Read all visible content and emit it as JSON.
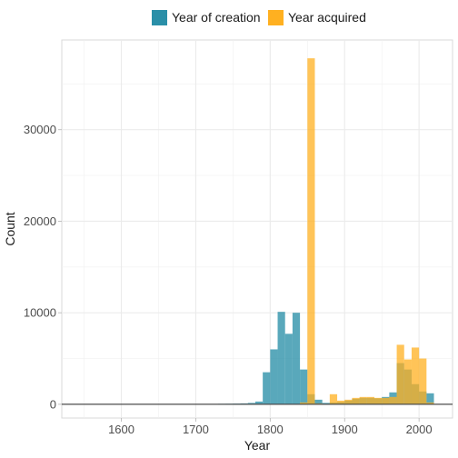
{
  "chart_data": {
    "type": "bar",
    "title": "",
    "xlabel": "Year",
    "ylabel": "Count",
    "xlim": [
      1520,
      2045
    ],
    "ylim": [
      -1500,
      39800
    ],
    "x_ticks": [
      1600,
      1700,
      1800,
      1900,
      2000
    ],
    "y_ticks": [
      0,
      10000,
      20000,
      30000
    ],
    "bin_width": 10,
    "grid": true,
    "legend_position": "top",
    "series": [
      {
        "name": "Year of creation",
        "color": "#2a8fa8",
        "bins": [
          {
            "x": 1735,
            "y": 50
          },
          {
            "x": 1745,
            "y": 60
          },
          {
            "x": 1755,
            "y": 80
          },
          {
            "x": 1765,
            "y": 100
          },
          {
            "x": 1775,
            "y": 150
          },
          {
            "x": 1785,
            "y": 300
          },
          {
            "x": 1795,
            "y": 3500
          },
          {
            "x": 1805,
            "y": 6000
          },
          {
            "x": 1815,
            "y": 10100
          },
          {
            "x": 1825,
            "y": 7700
          },
          {
            "x": 1835,
            "y": 10000
          },
          {
            "x": 1845,
            "y": 3800
          },
          {
            "x": 1855,
            "y": 1100
          },
          {
            "x": 1865,
            "y": 500
          },
          {
            "x": 1875,
            "y": 150
          },
          {
            "x": 1885,
            "y": 200
          },
          {
            "x": 1895,
            "y": 250
          },
          {
            "x": 1905,
            "y": 400
          },
          {
            "x": 1915,
            "y": 600
          },
          {
            "x": 1925,
            "y": 700
          },
          {
            "x": 1935,
            "y": 700
          },
          {
            "x": 1945,
            "y": 650
          },
          {
            "x": 1955,
            "y": 800
          },
          {
            "x": 1965,
            "y": 1300
          },
          {
            "x": 1975,
            "y": 4500
          },
          {
            "x": 1985,
            "y": 3800
          },
          {
            "x": 1995,
            "y": 2200
          },
          {
            "x": 2005,
            "y": 1400
          },
          {
            "x": 2015,
            "y": 1200
          }
        ]
      },
      {
        "name": "Year acquired",
        "color": "#ffb020",
        "bins": [
          {
            "x": 1845,
            "y": 200
          },
          {
            "x": 1855,
            "y": 37800
          },
          {
            "x": 1865,
            "y": 100
          },
          {
            "x": 1885,
            "y": 1100
          },
          {
            "x": 1895,
            "y": 400
          },
          {
            "x": 1905,
            "y": 500
          },
          {
            "x": 1915,
            "y": 700
          },
          {
            "x": 1925,
            "y": 800
          },
          {
            "x": 1935,
            "y": 800
          },
          {
            "x": 1945,
            "y": 700
          },
          {
            "x": 1955,
            "y": 700
          },
          {
            "x": 1965,
            "y": 800
          },
          {
            "x": 1975,
            "y": 6500
          },
          {
            "x": 1985,
            "y": 4900
          },
          {
            "x": 1995,
            "y": 6200
          },
          {
            "x": 2005,
            "y": 5000
          },
          {
            "x": 2015,
            "y": 200
          }
        ]
      }
    ]
  }
}
